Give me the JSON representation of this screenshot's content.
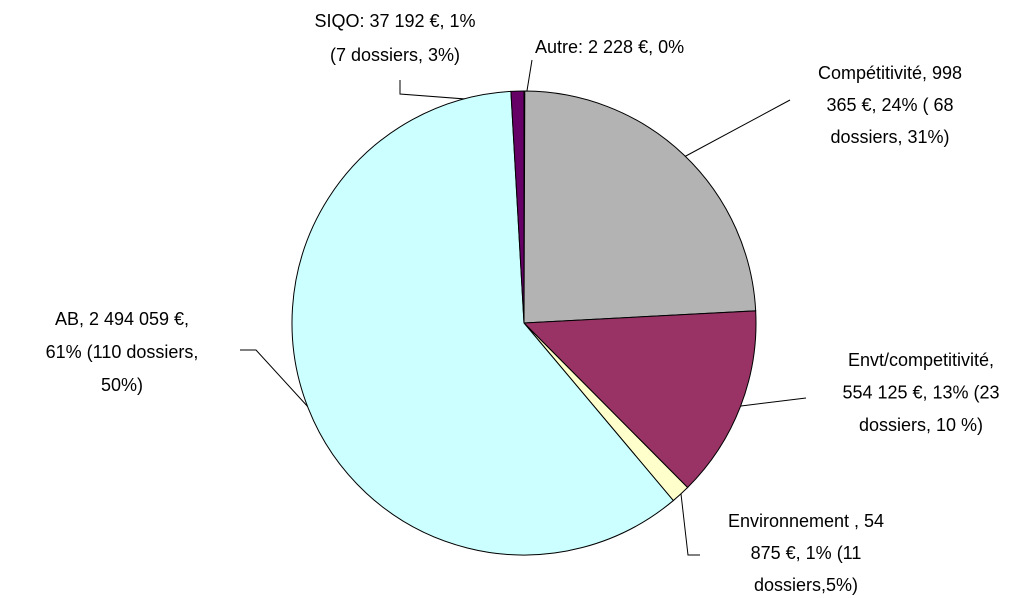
{
  "chart_data": {
    "type": "pie",
    "values": [
      2228,
      998365,
      554125,
      54875,
      2494059,
      37192
    ],
    "colors": [
      "#9999ff",
      "#b3b3b3",
      "#993366",
      "#ffffcc",
      "#ccffff",
      "#660066"
    ],
    "labels": [
      [
        "Autre: 2 228 €, 0%"
      ],
      [
        "Compétitivité, 998",
        "365 €, 24% ( 68",
        "dossiers, 31%)"
      ],
      [
        "Envt/competitivité,",
        "554 125 €, 13% (23",
        "dossiers, 10 %)"
      ],
      [
        "Environnement , 54",
        "875 €, 1% (11",
        "dossiers,5%)"
      ],
      [
        "AB, 2 494 059 €,",
        "61% (110 dossiers,",
        "50%)"
      ],
      [
        "SIQO: 37 192 €, 1%",
        "(7 dossiers, 3%)"
      ]
    ]
  }
}
